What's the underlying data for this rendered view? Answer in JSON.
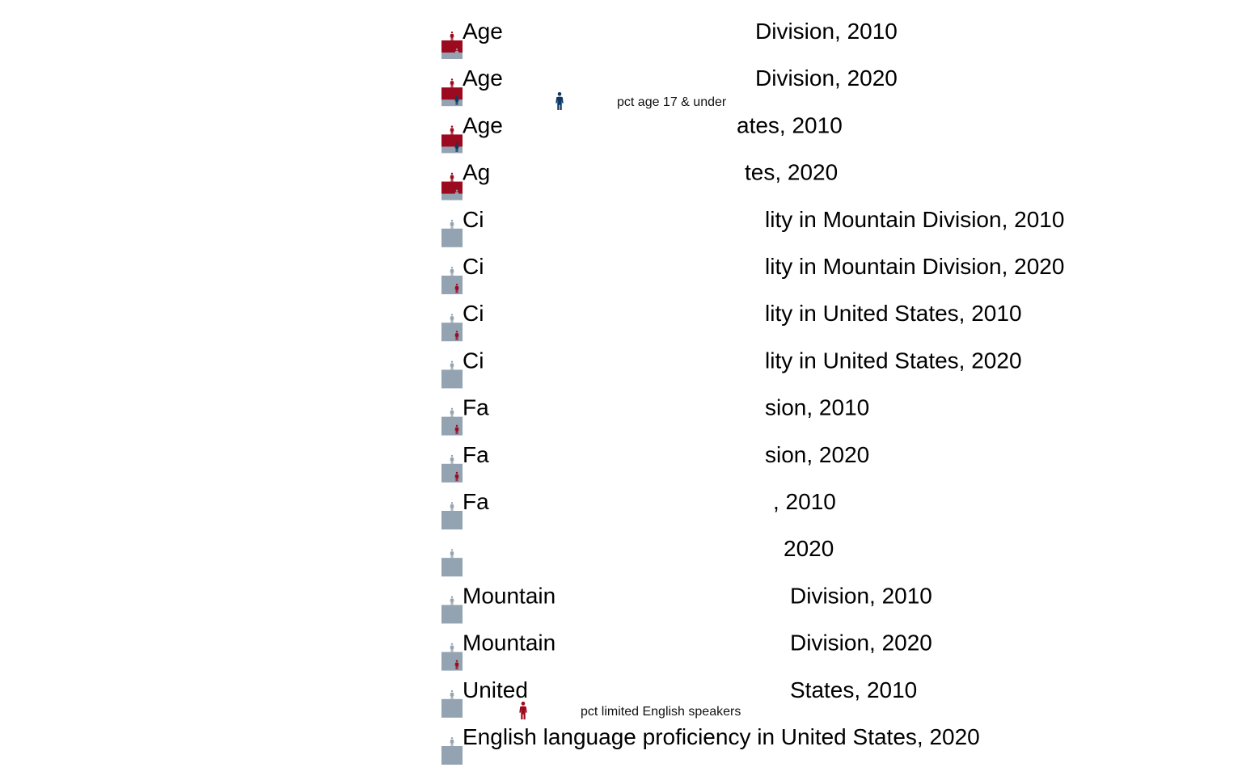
{
  "chart_data": {
    "type": "waffle",
    "colors": {
      "highlight_red": "#9b0a1e",
      "highlight_blue": "#0d3a62",
      "base": "#93a3b1"
    },
    "rows": [
      {
        "title": "Age Division, 2010",
        "tile_color": "highlight_red",
        "accent_color": "base"
      },
      {
        "title": "Age Division, 2020",
        "tile_color": "highlight_red",
        "accent_color": "highlight_blue"
      },
      {
        "title": "Age ates, 2010",
        "tile_color": "highlight_red",
        "accent_color": "highlight_blue"
      },
      {
        "title": "Ag tes, 2020",
        "tile_color": "highlight_red",
        "accent_color": "base"
      },
      {
        "title": "Ci lity in Mountain Division, 2010",
        "tile_color": "base",
        "accent_color": "base"
      },
      {
        "title": "Ci lity in Mountain Division, 2020",
        "tile_color": "base",
        "accent_color": "highlight_red"
      },
      {
        "title": "Ci lity in United States, 2010",
        "tile_color": "base",
        "accent_color": "highlight_red"
      },
      {
        "title": "Ci lity in United States, 2020",
        "tile_color": "base",
        "accent_color": "base"
      },
      {
        "title": "Fa sion, 2010",
        "tile_color": "base",
        "accent_color": "highlight_red"
      },
      {
        "title": "Fa sion, 2020",
        "tile_color": "base",
        "accent_color": "highlight_red"
      },
      {
        "title": "Fa , 2010",
        "tile_color": "base",
        "accent_color": "base"
      },
      {
        "title": "2020",
        "tile_color": "base",
        "accent_color": "base"
      },
      {
        "title": "Mountain Division, 2010",
        "tile_color": "base",
        "accent_color": "base"
      },
      {
        "title": "Mountain Division, 2020",
        "tile_color": "base",
        "accent_color": "highlight_red"
      },
      {
        "title": "United States, 2010",
        "tile_color": "base",
        "accent_color": "base"
      },
      {
        "title": "English language proficiency in United States, 2020",
        "tile_color": "base",
        "accent_color": "base"
      }
    ],
    "legend": [
      {
        "label": "pct age 17 & under",
        "color": "highlight_blue",
        "icon": "person-icon"
      },
      {
        "label": "pct limited English speakers",
        "color": "highlight_red",
        "icon": "person-icon"
      }
    ]
  }
}
